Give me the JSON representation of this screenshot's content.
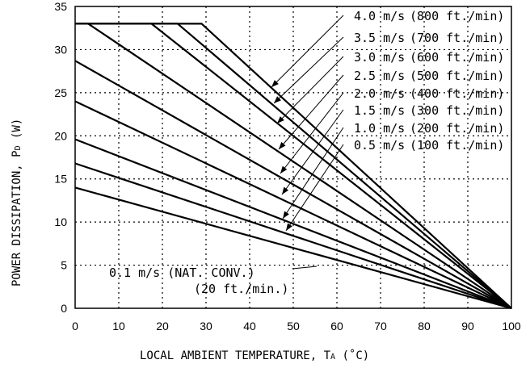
{
  "chart_data": {
    "type": "line",
    "xlabel": "LOCAL AMBIENT TEMPERATURE, T",
    "xlabel_sub": "A",
    "xlabel_unit": " (˚C)",
    "ylabel": "POWER DISSIPATION, P",
    "ylabel_sub": "D",
    "ylabel_unit": " (W)",
    "xlim": [
      0,
      100
    ],
    "ylim": [
      0,
      35
    ],
    "x_ticks": [
      "0",
      "10",
      "20",
      "30",
      "40",
      "50",
      "60",
      "70",
      "80",
      "90",
      "100"
    ],
    "y_ticks": [
      "0",
      "5",
      "10",
      "15",
      "20",
      "25",
      "30",
      "35"
    ],
    "grid": true,
    "series": [
      {
        "name": "0.1 m/s (NAT. CONV.)",
        "sub": "(20 ft./min.)",
        "points": [
          [
            0,
            14
          ],
          [
            100,
            0
          ]
        ]
      },
      {
        "name": "0.5 m/s",
        "sub": "(100 ft./min)",
        "points": [
          [
            0,
            16.8
          ],
          [
            100,
            0
          ]
        ]
      },
      {
        "name": "1.0 m/s",
        "sub": "(200 ft./min)",
        "points": [
          [
            0,
            19.6
          ],
          [
            100,
            0
          ]
        ]
      },
      {
        "name": "1.5 m/s",
        "sub": "(300 ft./min)",
        "points": [
          [
            0,
            24.0
          ],
          [
            100,
            0
          ]
        ]
      },
      {
        "name": "2.0 m/s",
        "sub": "(400 ft./min)",
        "points": [
          [
            0,
            28.7
          ],
          [
            100,
            0
          ]
        ]
      },
      {
        "name": "2.5 m/s",
        "sub": "(500 ft./min)",
        "points": [
          [
            0,
            33
          ],
          [
            3,
            33
          ],
          [
            100,
            0
          ]
        ]
      },
      {
        "name": "3.0 m/s",
        "sub": "(600 ft./min)",
        "points": [
          [
            0,
            33
          ],
          [
            17.5,
            33
          ],
          [
            100,
            0
          ]
        ]
      },
      {
        "name": "3.5 m/s",
        "sub": "(700 ft./min)",
        "points": [
          [
            0,
            33
          ],
          [
            23.5,
            33
          ],
          [
            100,
            0
          ]
        ]
      },
      {
        "name": "4.0 m/s",
        "sub": "(800 ft./min)",
        "points": [
          [
            0,
            33
          ],
          [
            29,
            33
          ],
          [
            100,
            0
          ]
        ]
      }
    ],
    "labels": [
      {
        "text": "4.0 m/s",
        "sub": "(800 ft./min)",
        "leader": [
          [
            425,
            19
          ],
          [
            336,
            108
          ]
        ]
      },
      {
        "text": "3.5 m/s",
        "sub": "(700 ft./min)",
        "leader": [
          [
            425,
            46
          ],
          [
            339,
            128
          ]
        ]
      },
      {
        "text": "3.0 m/s",
        "sub": "(600 ft./min)",
        "leader": [
          [
            425,
            70
          ],
          [
            343,
            153
          ]
        ]
      },
      {
        "text": "2.5 m/s",
        "sub": "(500 ft./min)",
        "leader": [
          [
            425,
            93
          ],
          [
            345,
            185
          ]
        ]
      },
      {
        "text": "2.0 m/s",
        "sub": "(400 ft./min)",
        "leader": [
          [
            425,
            115
          ],
          [
            347,
            215
          ]
        ]
      },
      {
        "text": "1.5 m/s",
        "sub": "(300 ft./min)",
        "leader": [
          [
            425,
            136
          ],
          [
            349,
            241
          ]
        ]
      },
      {
        "text": "1.0 m/s",
        "sub": "(200 ft./min)",
        "leader": [
          [
            425,
            158
          ],
          [
            350,
            271
          ]
        ]
      },
      {
        "text": "0.5 m/s",
        "sub": "(100 ft./min)",
        "leader": [
          [
            425,
            179
          ],
          [
            354,
            286
          ]
        ]
      }
    ],
    "annotation": {
      "line1": "0.1 m/s (NAT. CONV.)",
      "line2": "(20 ft./min.)"
    }
  }
}
